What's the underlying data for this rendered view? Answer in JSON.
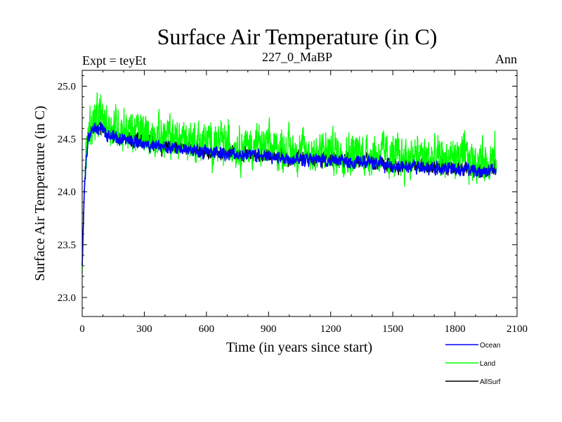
{
  "chart_data": {
    "type": "line",
    "title": "Surface Air Temperature (in C)",
    "subtitle_left": "Expt = teyEt",
    "subtitle_center": "227_0_MaBP",
    "subtitle_right": "Ann",
    "xlabel": "Time (in years since start)",
    "ylabel": "Surface Air Temperature (in C)",
    "xlim": [
      0,
      2100
    ],
    "ylim": [
      22.82,
      25.15
    ],
    "x_ticks": [
      0,
      300,
      600,
      900,
      1200,
      1500,
      1800,
      2100
    ],
    "y_ticks": [
      "23.0",
      "23.5",
      "24.0",
      "24.5",
      "25.0"
    ],
    "y_tick_values": [
      23.0,
      23.5,
      24.0,
      24.5,
      25.0
    ],
    "legend_position": "bottom-right, below plot",
    "series": [
      {
        "name": "Land",
        "color": "#00ff00",
        "noise": 0.17,
        "x": [
          0,
          10,
          20,
          30,
          50,
          80,
          100,
          150,
          200,
          300,
          400,
          500,
          600,
          700,
          800,
          900,
          1000,
          1100,
          1200,
          1300,
          1400,
          1500,
          1600,
          1700,
          1800,
          1900,
          2000
        ],
        "values": [
          23.2,
          24.0,
          24.4,
          24.6,
          24.65,
          24.7,
          24.68,
          24.62,
          24.6,
          24.55,
          24.52,
          24.5,
          24.47,
          24.45,
          24.44,
          24.42,
          24.4,
          24.38,
          24.38,
          24.37,
          24.37,
          24.33,
          24.33,
          24.32,
          24.32,
          24.3,
          24.3
        ]
      },
      {
        "name": "Ocean",
        "color": "#0000ff",
        "noise": 0.05,
        "x": [
          0,
          10,
          20,
          30,
          50,
          80,
          100,
          150,
          200,
          300,
          400,
          500,
          600,
          700,
          800,
          900,
          1000,
          1100,
          1200,
          1300,
          1400,
          1500,
          1600,
          1700,
          1800,
          1900,
          2000
        ],
        "values": [
          23.3,
          24.0,
          24.35,
          24.52,
          24.58,
          24.6,
          24.58,
          24.52,
          24.5,
          24.45,
          24.42,
          24.4,
          24.38,
          24.36,
          24.35,
          24.33,
          24.32,
          24.3,
          24.3,
          24.28,
          24.28,
          24.24,
          24.24,
          24.22,
          24.22,
          24.2,
          24.2
        ]
      },
      {
        "name": "AllSurf",
        "color": "#000000",
        "noise": 0.06,
        "x": [
          0,
          10,
          20,
          30,
          50,
          80,
          100,
          150,
          200,
          300,
          400,
          500,
          600,
          700,
          800,
          900,
          1000,
          1100,
          1200,
          1300,
          1400,
          1500,
          1600,
          1700,
          1800,
          1900,
          2000
        ],
        "values": [
          23.3,
          24.0,
          24.36,
          24.54,
          24.59,
          24.62,
          24.6,
          24.54,
          24.52,
          24.47,
          24.44,
          24.42,
          24.39,
          24.37,
          24.36,
          24.34,
          24.33,
          24.31,
          24.31,
          24.29,
          24.29,
          24.25,
          24.25,
          24.23,
          24.23,
          24.21,
          24.21
        ]
      }
    ],
    "draw_order": [
      "AllSurf",
      "Land",
      "Ocean"
    ],
    "legend_order": [
      "Ocean",
      "Land",
      "AllSurf"
    ]
  }
}
